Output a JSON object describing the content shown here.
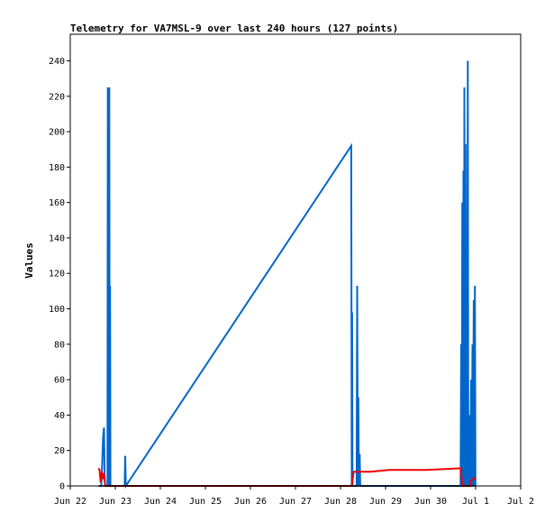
{
  "chart_data": {
    "type": "line",
    "title": "Telemetry for VA7MSL-9 over last 240 hours (127 points)",
    "xlabel": "",
    "ylabel": "Values",
    "x_ticks": [
      "Jun 22",
      "Jun 23",
      "Jun 24",
      "Jun 25",
      "Jun 26",
      "Jun 27",
      "Jun 28",
      "Jun 29",
      "Jun 30",
      "Jul 1",
      "Jul 2"
    ],
    "y_ticks": [
      "0",
      "20",
      "40",
      "60",
      "80",
      "100",
      "120",
      "140",
      "160",
      "180",
      "200",
      "220",
      "240"
    ],
    "xlim": [
      0,
      240
    ],
    "ylim": [
      0,
      255
    ],
    "grid": false,
    "x_unit_note_hours_since": "Jun 22 00:00",
    "series": [
      {
        "color": "#0066cc",
        "points": [
          [
            15.5,
            0
          ],
          [
            16.5,
            0
          ],
          [
            17.0,
            12
          ],
          [
            17.5,
            28
          ],
          [
            18.0,
            33
          ],
          [
            18.3,
            5
          ],
          [
            18.6,
            0
          ],
          [
            19.8,
            0
          ],
          [
            20.0,
            225
          ],
          [
            20.2,
            0
          ],
          [
            20.4,
            113
          ],
          [
            20.6,
            0
          ],
          [
            20.8,
            225
          ],
          [
            21.0,
            0
          ],
          [
            21.2,
            113
          ],
          [
            21.4,
            0
          ],
          [
            21.6,
            0
          ],
          [
            29.0,
            0
          ],
          [
            29.3,
            17
          ],
          [
            29.6,
            0
          ],
          [
            149.7,
            192
          ],
          [
            150.0,
            0
          ],
          [
            150.2,
            98
          ],
          [
            150.4,
            0
          ],
          [
            152.6,
            0
          ],
          [
            152.9,
            113
          ],
          [
            153.2,
            0
          ],
          [
            153.5,
            50
          ],
          [
            153.8,
            0
          ],
          [
            154.2,
            18
          ],
          [
            154.5,
            0
          ],
          [
            208.0,
            0
          ],
          [
            208.3,
            80
          ],
          [
            208.6,
            0
          ],
          [
            208.9,
            160
          ],
          [
            209.2,
            0
          ],
          [
            209.5,
            178
          ],
          [
            209.8,
            0
          ],
          [
            210.0,
            225
          ],
          [
            210.3,
            0
          ],
          [
            210.6,
            193
          ],
          [
            210.9,
            0
          ],
          [
            211.2,
            97
          ],
          [
            211.5,
            0
          ],
          [
            211.8,
            240
          ],
          [
            212.1,
            0
          ],
          [
            212.4,
            0
          ],
          [
            212.9,
            40
          ],
          [
            213.2,
            0
          ],
          [
            213.6,
            60
          ],
          [
            213.9,
            0
          ],
          [
            214.3,
            80
          ],
          [
            214.6,
            0
          ],
          [
            215.0,
            105
          ],
          [
            215.3,
            0
          ],
          [
            215.6,
            113
          ],
          [
            215.9,
            0
          ]
        ]
      },
      {
        "color": "#ee0000",
        "points": [
          [
            15.0,
            10
          ],
          [
            15.6,
            9
          ],
          [
            16.2,
            2
          ],
          [
            16.8,
            8
          ],
          [
            17.4,
            5
          ],
          [
            18.0,
            7
          ],
          [
            18.6,
            0
          ],
          [
            150.0,
            0
          ],
          [
            151.0,
            8
          ],
          [
            160.0,
            8
          ],
          [
            170.0,
            9
          ],
          [
            190.0,
            9
          ],
          [
            208.0,
            10
          ],
          [
            209.0,
            0
          ],
          [
            213.0,
            0
          ],
          [
            213.5,
            3
          ],
          [
            215.0,
            4
          ],
          [
            216.0,
            5
          ]
        ]
      },
      {
        "color": "#000000",
        "points": [
          [
            15.0,
            0
          ],
          [
            216.0,
            0
          ]
        ]
      }
    ]
  }
}
